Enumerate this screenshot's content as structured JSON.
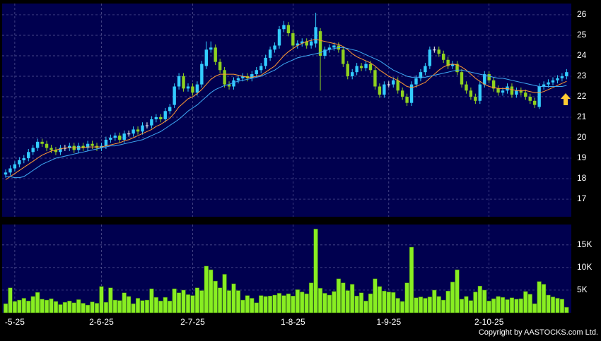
{
  "chart_data": [
    {
      "type": "candlestick",
      "open": [
        18.2,
        18.3,
        18.5,
        18.7,
        18.9,
        19.0,
        19.3,
        19.5,
        19.8,
        19.7,
        19.5,
        19.4,
        19.3,
        19.5,
        19.5,
        19.6,
        19.4,
        19.6,
        19.5,
        19.7,
        19.6,
        19.5,
        19.6,
        19.9,
        20.0,
        20.1,
        19.9,
        20.2,
        20.2,
        20.4,
        20.3,
        20.6,
        20.6,
        20.9,
        21.0,
        20.9,
        21.3,
        21.6,
        22.5,
        23.0,
        22.4,
        22.5,
        22.2,
        22.6,
        23.5,
        24.3,
        24.4,
        23.7,
        23.3,
        22.6,
        22.5,
        22.8,
        22.9,
        23.0,
        22.9,
        23.1,
        23.3,
        23.5,
        23.9,
        24.3,
        24.5,
        25.3,
        25.5,
        25.1,
        24.5,
        24.6,
        24.7,
        24.5,
        24.6,
        25.2,
        24.0,
        24.3,
        24.4,
        24.5,
        24.3,
        23.6,
        23.0,
        23.2,
        23.5,
        23.4,
        23.6,
        23.3,
        22.5,
        22.1,
        22.6,
        22.6,
        22.8,
        22.3,
        22.0,
        21.7,
        22.6,
        22.9,
        23.2,
        23.5,
        24.3,
        24.3,
        24.1,
        23.8,
        23.5,
        23.6,
        23.2,
        22.6,
        22.3,
        22.0,
        21.8,
        22.6,
        23.1,
        22.8,
        22.4,
        22.2,
        22.3,
        22.5,
        22.1,
        22.3,
        22.2,
        22.0,
        21.8,
        21.5,
        22.5,
        22.6,
        22.7,
        22.8,
        22.9,
        23.0
      ],
      "high": [
        18.45,
        18.65,
        18.85,
        19.05,
        19.15,
        19.45,
        19.65,
        19.95,
        19.95,
        19.85,
        19.65,
        19.55,
        19.65,
        19.65,
        19.75,
        19.75,
        19.75,
        19.75,
        19.85,
        19.85,
        19.75,
        19.75,
        20.05,
        20.15,
        20.25,
        20.25,
        20.35,
        20.35,
        20.55,
        20.55,
        20.75,
        20.75,
        21.05,
        21.15,
        21.15,
        21.45,
        21.65,
        22.65,
        23.15,
        23.15,
        22.65,
        22.65,
        22.75,
        23.75,
        24.7,
        24.7,
        24.55,
        23.85,
        23.45,
        22.75,
        22.95,
        23.05,
        23.15,
        23.15,
        23.25,
        23.45,
        23.65,
        24.05,
        24.45,
        24.65,
        25.45,
        25.7,
        25.65,
        25.25,
        24.75,
        24.85,
        24.85,
        24.85,
        26.1,
        25.35,
        24.45,
        24.55,
        24.65,
        24.65,
        24.45,
        23.75,
        23.35,
        23.65,
        23.65,
        23.75,
        23.75,
        23.45,
        22.65,
        22.75,
        22.75,
        22.95,
        22.95,
        22.45,
        22.15,
        22.75,
        23.05,
        23.35,
        23.65,
        24.45,
        24.45,
        24.45,
        24.25,
        23.95,
        23.75,
        23.75,
        23.35,
        22.75,
        22.45,
        22.15,
        22.75,
        23.25,
        23.25,
        22.95,
        22.55,
        22.45,
        22.65,
        22.65,
        22.45,
        22.45,
        22.35,
        22.15,
        21.95,
        22.65,
        22.75,
        22.85,
        22.95,
        23.05,
        23.15,
        23.35
      ],
      "low": [
        18.05,
        18.15,
        18.35,
        18.55,
        18.75,
        18.85,
        19.15,
        19.35,
        19.55,
        19.35,
        19.25,
        19.15,
        19.15,
        19.35,
        19.35,
        19.25,
        19.25,
        19.35,
        19.35,
        19.45,
        19.35,
        19.35,
        19.45,
        19.75,
        19.85,
        19.75,
        19.75,
        20.05,
        20.05,
        20.15,
        20.15,
        20.45,
        20.45,
        20.75,
        20.75,
        20.75,
        21.15,
        21.45,
        22.35,
        22.25,
        22.25,
        22.05,
        22.05,
        22.45,
        23.35,
        24.15,
        23.55,
        23.15,
        22.45,
        22.35,
        22.35,
        22.65,
        22.75,
        22.75,
        22.75,
        22.95,
        23.15,
        23.35,
        23.75,
        24.15,
        24.35,
        25.15,
        24.95,
        24.35,
        24.35,
        24.45,
        24.35,
        24.35,
        24.4,
        22.3,
        23.85,
        24.15,
        24.25,
        24.15,
        23.45,
        22.85,
        22.85,
        23.05,
        23.25,
        23.25,
        23.15,
        22.35,
        21.95,
        21.95,
        22.45,
        22.45,
        22.15,
        21.85,
        21.55,
        21.55,
        22.45,
        22.75,
        23.05,
        23.35,
        24.15,
        23.95,
        23.65,
        23.35,
        23.35,
        23.05,
        22.45,
        22.15,
        21.85,
        21.65,
        21.65,
        22.45,
        22.65,
        22.25,
        22.05,
        22.05,
        22.15,
        21.95,
        21.95,
        22.05,
        21.85,
        21.65,
        21.45,
        21.4,
        22.35,
        22.45,
        22.55,
        22.65,
        22.75,
        22.85
      ],
      "close": [
        18.3,
        18.5,
        18.7,
        18.9,
        19.0,
        19.3,
        19.5,
        19.8,
        19.7,
        19.5,
        19.4,
        19.3,
        19.5,
        19.5,
        19.6,
        19.4,
        19.6,
        19.5,
        19.7,
        19.6,
        19.5,
        19.6,
        19.9,
        20.0,
        20.1,
        19.9,
        20.2,
        20.2,
        20.4,
        20.3,
        20.6,
        20.6,
        20.9,
        21.0,
        20.9,
        21.3,
        21.5,
        22.5,
        23.0,
        22.4,
        22.5,
        22.2,
        22.6,
        23.6,
        24.3,
        24.4,
        23.7,
        23.3,
        22.6,
        22.5,
        22.8,
        22.9,
        23.0,
        22.9,
        23.1,
        23.3,
        23.5,
        23.9,
        24.3,
        24.5,
        25.3,
        25.5,
        25.1,
        24.5,
        24.6,
        24.7,
        24.5,
        24.7,
        25.4,
        24.0,
        24.3,
        24.4,
        24.5,
        24.3,
        23.6,
        23.0,
        23.2,
        23.5,
        23.4,
        23.6,
        23.3,
        22.5,
        22.1,
        22.6,
        22.6,
        22.8,
        22.3,
        22.0,
        21.7,
        22.6,
        22.9,
        23.2,
        23.5,
        24.3,
        24.3,
        24.1,
        23.8,
        23.5,
        23.6,
        23.2,
        22.6,
        22.3,
        22.0,
        21.8,
        22.6,
        23.1,
        22.8,
        22.4,
        22.2,
        22.3,
        22.5,
        22.1,
        22.3,
        22.2,
        22.0,
        21.8,
        21.6,
        22.5,
        22.6,
        22.7,
        22.8,
        22.9,
        23.0,
        23.2
      ],
      "up_color": "#33ccff",
      "down_color": "#8fd11f",
      "flat_color": "#ffffff",
      "series": [
        {
          "color": "#ff9933",
          "values": [
            17.95,
            18.1,
            18.25,
            18.4,
            18.55,
            18.7,
            18.85,
            19.0,
            19.15,
            19.25,
            19.35,
            19.4,
            19.45,
            19.5,
            19.5,
            19.5,
            19.5,
            19.5,
            19.55,
            19.55,
            19.55,
            19.55,
            19.6,
            19.65,
            19.7,
            19.75,
            19.85,
            19.9,
            20.0,
            20.1,
            20.2,
            20.3,
            20.4,
            20.55,
            20.65,
            20.8,
            20.95,
            21.2,
            21.5,
            21.7,
            21.9,
            22.0,
            22.15,
            22.35,
            22.6,
            22.85,
            23.0,
            23.1,
            23.1,
            23.1,
            23.1,
            23.05,
            23.0,
            22.95,
            22.95,
            23.0,
            23.05,
            23.2,
            23.35,
            23.5,
            23.75,
            24.0,
            24.2,
            24.35,
            24.5,
            24.6,
            24.7,
            24.75,
            24.8,
            24.75,
            24.7,
            24.65,
            24.6,
            24.55,
            24.45,
            24.3,
            24.1,
            23.95,
            23.85,
            23.75,
            23.65,
            23.5,
            23.3,
            23.15,
            23.0,
            22.9,
            22.8,
            22.65,
            22.5,
            22.45,
            22.5,
            22.6,
            22.7,
            22.9,
            23.1,
            23.3,
            23.45,
            23.55,
            23.6,
            23.55,
            23.45,
            23.3,
            23.1,
            22.9,
            22.75,
            22.6,
            22.5,
            22.45,
            22.4,
            22.4,
            22.4,
            22.35,
            22.3,
            22.3,
            22.3,
            22.25,
            22.2,
            22.2,
            22.25,
            22.35,
            22.45,
            22.55,
            22.65,
            22.75
          ]
        },
        {
          "color": "#3fa9f5",
          "values": [
            18.1,
            18.1,
            18.05,
            18.05,
            18.1,
            18.25,
            18.4,
            18.55,
            18.7,
            18.8,
            18.9,
            19.0,
            19.05,
            19.1,
            19.15,
            19.2,
            19.25,
            19.3,
            19.35,
            19.4,
            19.45,
            19.5,
            19.55,
            19.6,
            19.6,
            19.65,
            19.7,
            19.75,
            19.8,
            19.85,
            19.9,
            20.0,
            20.1,
            20.2,
            20.3,
            20.45,
            20.6,
            20.75,
            20.9,
            21.1,
            21.3,
            21.45,
            21.6,
            21.8,
            22.0,
            22.2,
            22.35,
            22.45,
            22.55,
            22.6,
            22.7,
            22.75,
            22.8,
            22.85,
            22.9,
            22.95,
            23.0,
            23.1,
            23.2,
            23.3,
            23.45,
            23.6,
            23.7,
            23.8,
            23.9,
            23.95,
            24.0,
            24.05,
            24.1,
            24.15,
            24.25,
            24.3,
            24.35,
            24.4,
            24.4,
            24.35,
            24.3,
            24.25,
            24.15,
            24.05,
            23.95,
            23.85,
            23.75,
            23.6,
            23.45,
            23.3,
            23.2,
            23.1,
            23.0,
            22.95,
            22.95,
            22.95,
            22.95,
            23.0,
            23.05,
            23.1,
            23.15,
            23.2,
            23.25,
            23.3,
            23.3,
            23.25,
            23.2,
            23.15,
            23.1,
            23.05,
            23.0,
            22.95,
            22.9,
            22.9,
            22.85,
            22.8,
            22.75,
            22.7,
            22.65,
            22.6,
            22.55,
            22.5,
            22.5,
            22.5,
            22.5,
            22.5,
            22.5,
            22.55
          ]
        }
      ],
      "ylim": [
        16.14,
        26.55
      ],
      "yticks": [
        17,
        18,
        19,
        20,
        21,
        22,
        23,
        24,
        25,
        26
      ],
      "grid": true
    },
    {
      "type": "bar",
      "categories": [
        null,
        null,
        "-5-25",
        null,
        null,
        null,
        null,
        null,
        null,
        null,
        null,
        null,
        null,
        null,
        null,
        null,
        null,
        null,
        null,
        null,
        null,
        "2-6-25",
        null,
        null,
        null,
        null,
        null,
        null,
        null,
        null,
        null,
        null,
        null,
        null,
        null,
        null,
        null,
        null,
        null,
        null,
        null,
        "2-7-25",
        null,
        null,
        null,
        null,
        null,
        null,
        null,
        null,
        null,
        null,
        null,
        null,
        null,
        null,
        null,
        null,
        null,
        null,
        null,
        null,
        null,
        "1-8-25",
        null,
        null,
        null,
        null,
        null,
        null,
        null,
        null,
        null,
        null,
        null,
        null,
        null,
        null,
        null,
        null,
        null,
        null,
        null,
        null,
        "1-9-25",
        null,
        null,
        null,
        null,
        null,
        null,
        null,
        null,
        null,
        null,
        null,
        null,
        null,
        null,
        null,
        null,
        null,
        null,
        null,
        null,
        null,
        "2-10-25",
        null,
        null,
        null,
        null,
        null,
        null,
        null,
        null,
        null,
        null,
        null,
        null,
        null,
        null,
        null,
        null,
        null
      ],
      "values": [
        2000,
        5500,
        2500,
        2800,
        3200,
        2600,
        3600,
        4500,
        3000,
        2800,
        3100,
        2500,
        1800,
        2300,
        2600,
        2200,
        2900,
        2100,
        1700,
        2400,
        2100,
        5800,
        2300,
        5500,
        2800,
        2700,
        4400,
        3600,
        2000,
        3200,
        2700,
        2800,
        5300,
        3400,
        2600,
        3400,
        2600,
        5300,
        4400,
        5000,
        4000,
        3800,
        5500,
        4900,
        10300,
        9500,
        7000,
        5500,
        8500,
        4900,
        6400,
        4900,
        2800,
        3800,
        3200,
        2200,
        3800,
        3600,
        3700,
        3900,
        4300,
        3800,
        4200,
        3700,
        5100,
        4600,
        4200,
        6600,
        18500,
        5400,
        4300,
        3900,
        4700,
        7500,
        6600,
        4900,
        6300,
        3700,
        4400,
        2600,
        4200,
        7500,
        5800,
        4800,
        4600,
        4500,
        3200,
        2500,
        6600,
        14500,
        3300,
        3500,
        3200,
        3500,
        5000,
        3600,
        2800,
        4800,
        6800,
        9500,
        3000,
        3600,
        2700,
        4600,
        5900,
        5000,
        2600,
        3100,
        3600,
        3400,
        2900,
        3300,
        3000,
        3100,
        4700,
        4100,
        2000,
        6900,
        6300,
        3900,
        3500,
        3200,
        3000,
        1200
      ],
      "color": "#88ee22",
      "ylim": [
        0,
        19500
      ],
      "yticks": [
        {
          "value": 5000,
          "label": "5K"
        },
        {
          "value": 10000,
          "label": "10K"
        },
        {
          "value": 15000,
          "label": "15K"
        }
      ],
      "grid": true
    }
  ],
  "copyright": "Copyright by AASTOCKS.com Ltd."
}
